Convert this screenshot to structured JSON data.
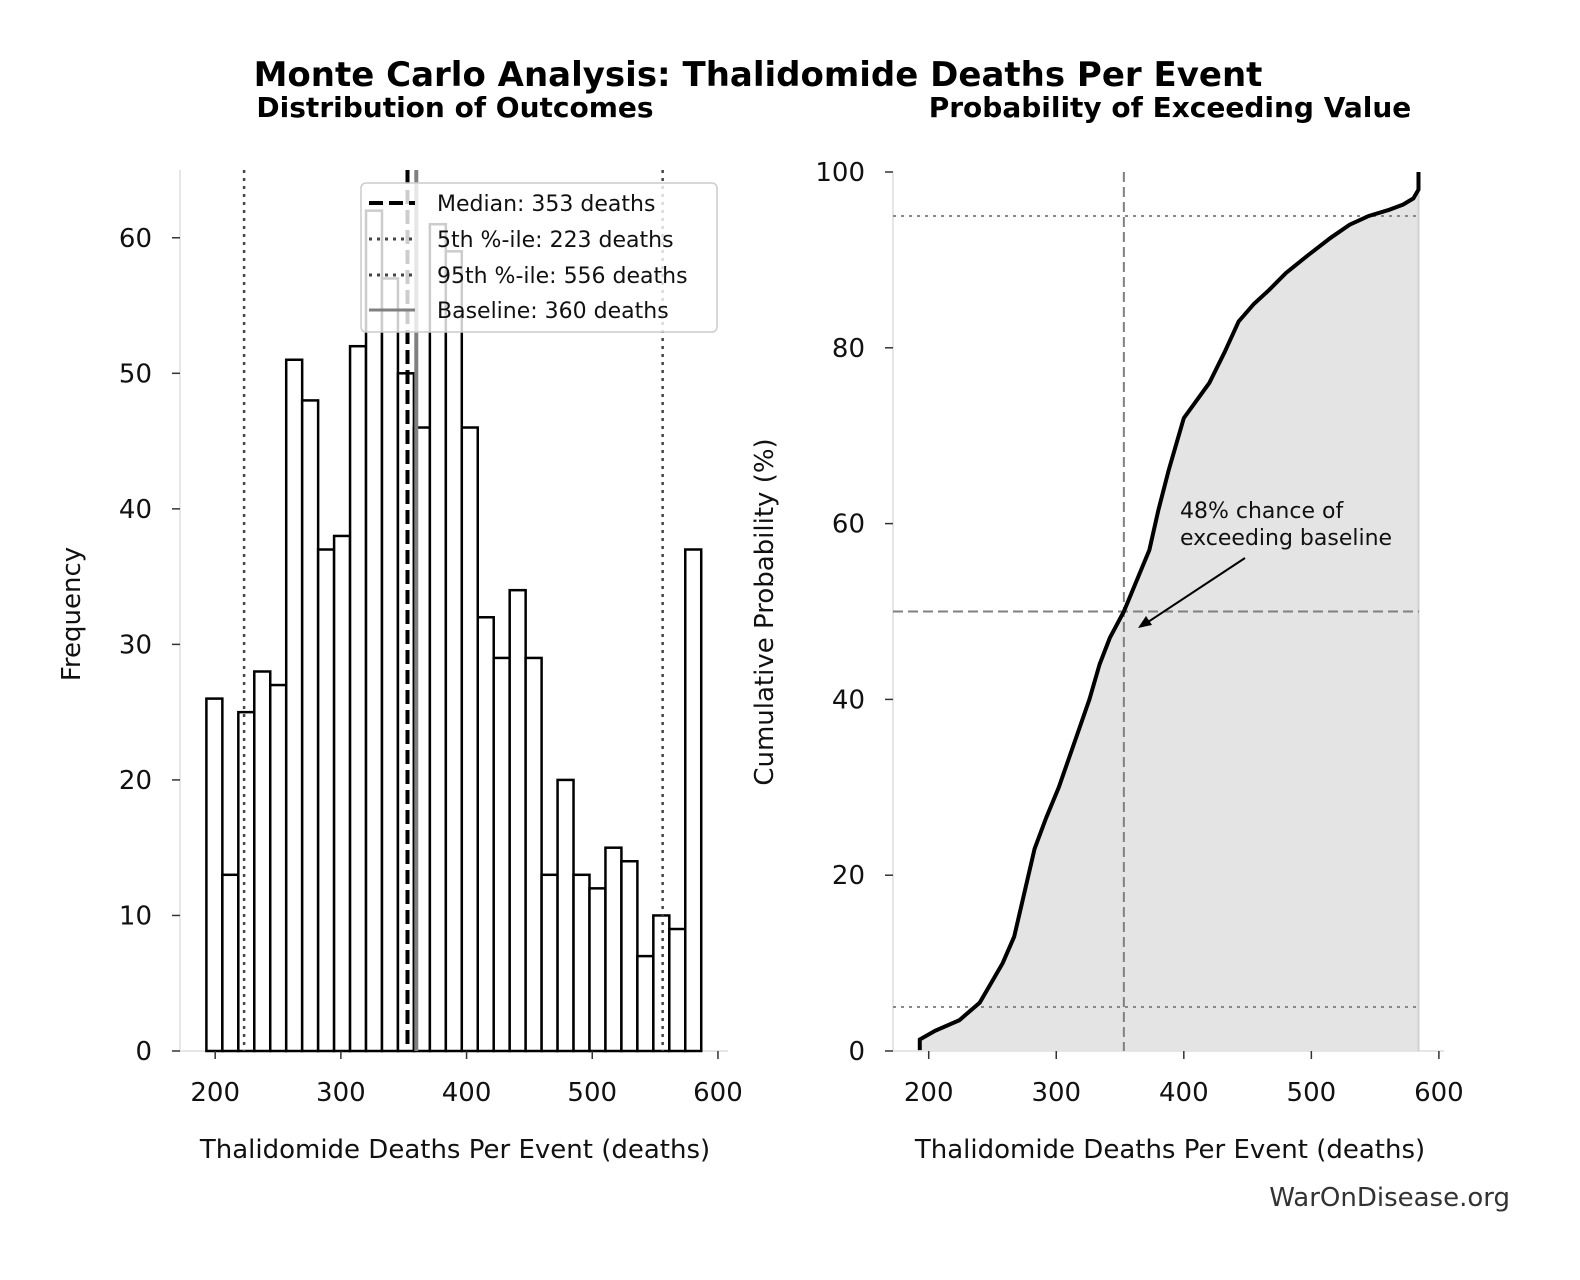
{
  "title": "Monte Carlo Analysis: Thalidomide Deaths Per Event",
  "watermark": "WarOnDisease.org",
  "chart_data": [
    {
      "type": "bar",
      "subtitle": "Distribution of Outcomes",
      "xlabel": "Thalidomide Deaths Per Event (deaths)",
      "ylabel": "Frequency",
      "xlim": [
        172,
        608
      ],
      "ylim": [
        0,
        65
      ],
      "xticks": [
        "200",
        "300",
        "400",
        "500",
        "600"
      ],
      "yticks": [
        "0",
        "10",
        "20",
        "30",
        "40",
        "50",
        "60"
      ],
      "bin_start": 193,
      "bin_width": 12.7,
      "values": [
        26,
        13,
        25,
        28,
        27,
        51,
        48,
        37,
        38,
        52,
        62,
        57,
        50,
        46,
        61,
        59,
        46,
        32,
        29,
        34,
        29,
        13,
        20,
        13,
        12,
        15,
        14,
        7,
        10,
        9,
        37
      ],
      "bar_fill": "#ffffff",
      "bar_edge": "#000000",
      "grid": false,
      "legend_position": "top-right",
      "reference_lines": [
        {
          "label": "Median: 353 deaths",
          "x": 353,
          "style": "dashed",
          "color": "#000000"
        },
        {
          "label": "5th %-ile: 223 deaths",
          "x": 223,
          "style": "dotted",
          "color": "#444444"
        },
        {
          "label": "95th %-ile: 556 deaths",
          "x": 556,
          "style": "dotted",
          "color": "#444444"
        },
        {
          "label": "Baseline: 360 deaths",
          "x": 360,
          "style": "solid",
          "color": "#808080"
        }
      ]
    },
    {
      "type": "area",
      "subtitle": "Probability of Exceeding Value",
      "xlabel": "Thalidomide Deaths Per Event (deaths)",
      "ylabel": "Cumulative Probability (%)",
      "xlim": [
        172,
        604
      ],
      "ylim": [
        0,
        100
      ],
      "xticks": [
        "200",
        "300",
        "400",
        "500",
        "600"
      ],
      "yticks": [
        "0",
        "20",
        "40",
        "60",
        "80",
        "100"
      ],
      "x": [
        193,
        193,
        205,
        224,
        240,
        248,
        258,
        267,
        275,
        283,
        292,
        302,
        314,
        326,
        334,
        342,
        353,
        363,
        373,
        380,
        388,
        395,
        400,
        410,
        420,
        432,
        443,
        455,
        467,
        480,
        498,
        515,
        530,
        545,
        561,
        572,
        580,
        584,
        584
      ],
      "y": [
        0.1,
        1.3,
        2.3,
        3.5,
        5.5,
        7.5,
        10,
        13,
        18,
        23,
        26.5,
        30,
        35,
        40,
        44,
        47,
        50,
        53.5,
        57,
        61.5,
        66,
        69.5,
        72,
        74,
        76,
        79.5,
        83,
        85,
        86.6,
        88.5,
        90.6,
        92.5,
        94,
        95,
        95.7,
        96.3,
        97,
        98,
        100
      ],
      "fill": "#e4e4e4",
      "line_color": "#000000",
      "grid": false,
      "hlines": [
        {
          "y": 5,
          "style": "dotted",
          "color": "#888888"
        },
        {
          "y": 50,
          "style": "dashed",
          "color": "#808080"
        },
        {
          "y": 95,
          "style": "dotted",
          "color": "#888888"
        }
      ],
      "vlines": [
        {
          "x": 353,
          "style": "dashed",
          "color": "#808080"
        }
      ],
      "annotation": {
        "lines": [
          "48% chance of",
          "exceeding baseline"
        ]
      }
    }
  ]
}
